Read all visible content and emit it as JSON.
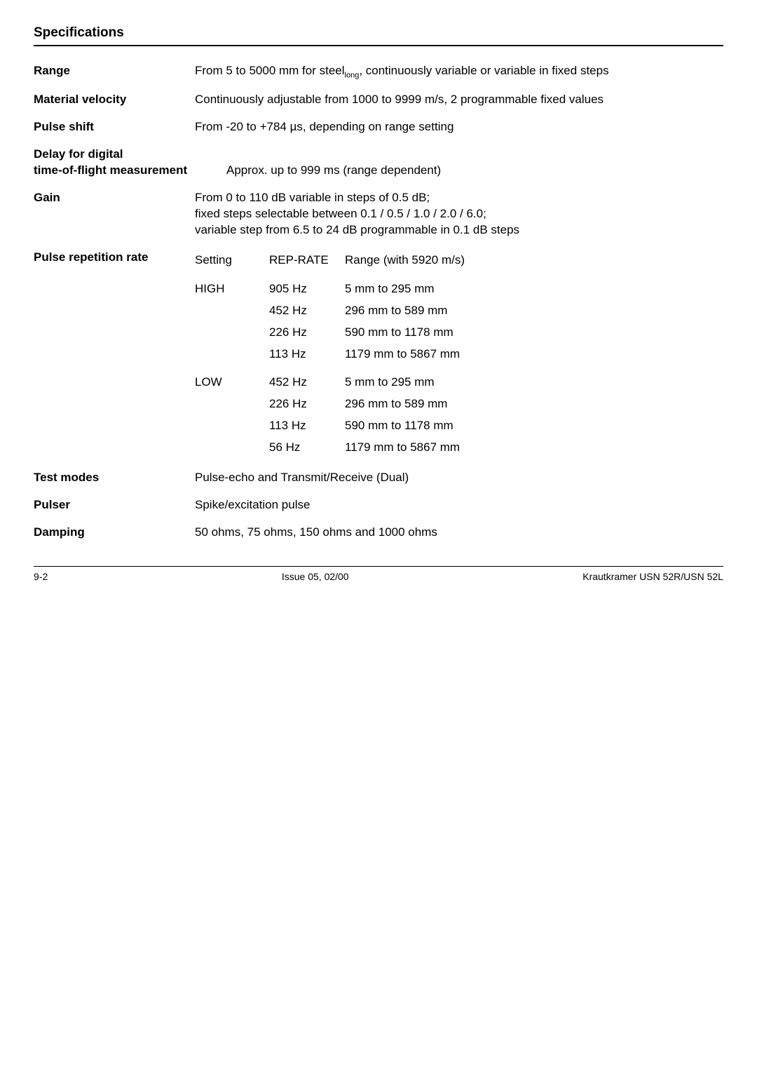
{
  "colors": {
    "text": "#000000",
    "background": "#ffffff",
    "rule": "#000000"
  },
  "typography": {
    "body_fontsize": 17,
    "title_fontsize": 19,
    "footer_fontsize": 14,
    "subscript_fontsize": 11,
    "font_family": "Arial, Helvetica, sans-serif"
  },
  "section_title": "Specifications",
  "specs": {
    "range": {
      "label": "Range",
      "value_pre": "From 5 to 5000 mm for steel",
      "value_sub": "long",
      "value_post": ", continuously variable or variable in fixed steps"
    },
    "material_velocity": {
      "label": "Material velocity",
      "value": "Continuously adjustable from 1000 to 9999 m/s, 2 programmable fixed values"
    },
    "pulse_shift": {
      "label": "Pulse shift",
      "value": "From -20 to +784 µs, depending on range setting"
    },
    "delay": {
      "label_line1": "Delay for digital",
      "label_line2": "time-of-flight measurement",
      "value": "Approx. up to 999 ms (range dependent)"
    },
    "gain": {
      "label": "Gain",
      "lines": [
        "From 0 to 110 dB variable in steps of 0.5 dB;",
        "fixed steps selectable between 0.1 / 0.5 / 1.0 / 2.0 / 6.0;",
        "variable step from 6.5 to 24 dB programmable in 0.1 dB steps"
      ]
    },
    "prr": {
      "label": "Pulse repetition rate",
      "header": {
        "setting": "Setting",
        "reprate": "REP-RATE",
        "range": "Range (with 5920 m/s)"
      },
      "groups": [
        {
          "setting": "HIGH",
          "rows": [
            {
              "rate": "905 Hz",
              "range": "5 mm to 295 mm"
            },
            {
              "rate": "452 Hz",
              "range": "296 mm to 589 mm"
            },
            {
              "rate": "226 Hz",
              "range": "590 mm to 1178 mm"
            },
            {
              "rate": "113 Hz",
              "range": "1179 mm to 5867 mm"
            }
          ]
        },
        {
          "setting": "LOW",
          "rows": [
            {
              "rate": "452 Hz",
              "range": "5 mm to 295 mm"
            },
            {
              "rate": "226 Hz",
              "range": "296 mm to 589 mm"
            },
            {
              "rate": "113 Hz",
              "range": "590 mm to 1178 mm"
            },
            {
              "rate": "56 Hz",
              "range": "1179 mm to 5867 mm"
            }
          ]
        }
      ]
    },
    "test_modes": {
      "label": "Test modes",
      "value": "Pulse-echo and Transmit/Receive (Dual)"
    },
    "pulser": {
      "label": "Pulser",
      "value": "Spike/excitation pulse"
    },
    "damping": {
      "label": "Damping",
      "value": "50 ohms, 75 ohms, 150 ohms and 1000 ohms"
    }
  },
  "footer": {
    "left": "9-2",
    "center": "Issue 05, 02/00",
    "right": "Krautkramer USN 52R/USN 52L"
  }
}
